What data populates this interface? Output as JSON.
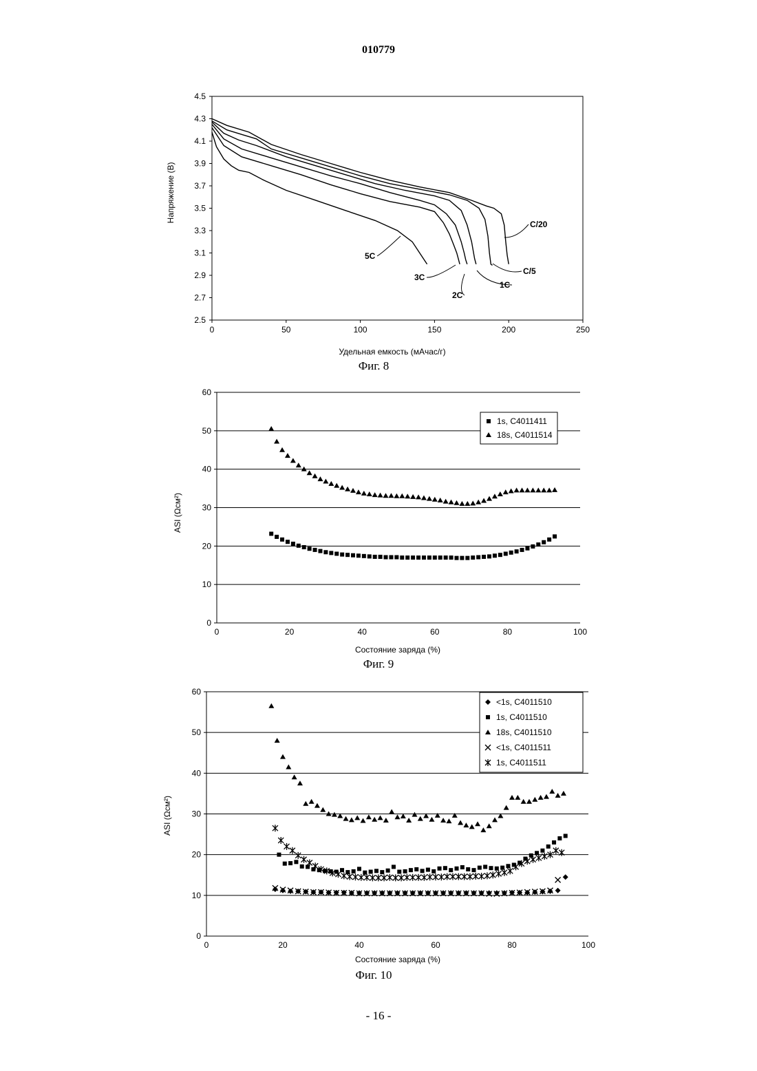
{
  "page": {
    "header_number": "010779",
    "footer_number": "- 16 -"
  },
  "figures": [
    {
      "caption": "Фиг. 8"
    },
    {
      "caption": "Фиг. 9"
    },
    {
      "caption": "Фиг. 10"
    }
  ],
  "chart_data": [
    {
      "type": "line",
      "title": "",
      "xlabel": "Удельная емкость (мАчас/г)",
      "ylabel": "Напряжение (В)",
      "xlim": [
        0,
        250
      ],
      "ylim": [
        2.5,
        4.5
      ],
      "xticks": [
        "0",
        "50",
        "100",
        "150",
        "200",
        "250"
      ],
      "yticks": [
        "2.5",
        "2.7",
        "2.9",
        "3.1",
        "3.3",
        "3.5",
        "3.7",
        "3.9",
        "4.1",
        "4.3",
        "4.5"
      ],
      "grid": false,
      "legend": "none",
      "series": [
        {
          "name": "C/20",
          "x": [
            0,
            10,
            25,
            40,
            60,
            80,
            100,
            120,
            140,
            160,
            175,
            185,
            190,
            195,
            197,
            198,
            199,
            200
          ],
          "y": [
            4.3,
            4.24,
            4.18,
            4.07,
            3.98,
            3.9,
            3.82,
            3.75,
            3.69,
            3.64,
            3.57,
            3.52,
            3.5,
            3.45,
            3.35,
            3.2,
            3.08,
            3.0
          ]
        },
        {
          "name": "C/5",
          "x": [
            0,
            10,
            20,
            30,
            40,
            60,
            80,
            100,
            120,
            140,
            160,
            172,
            180,
            184,
            186,
            187,
            188,
            189
          ],
          "y": [
            4.28,
            4.2,
            4.16,
            4.12,
            4.03,
            3.95,
            3.87,
            3.79,
            3.72,
            3.67,
            3.62,
            3.57,
            3.5,
            3.4,
            3.25,
            3.1,
            3.0,
            2.99
          ]
        },
        {
          "name": "1C",
          "x": [
            0,
            8,
            18,
            30,
            50,
            70,
            90,
            110,
            130,
            150,
            160,
            168,
            172,
            175,
            177,
            178
          ],
          "y": [
            4.27,
            4.17,
            4.11,
            4.06,
            3.96,
            3.88,
            3.8,
            3.72,
            3.66,
            3.61,
            3.57,
            3.48,
            3.35,
            3.2,
            3.05,
            3.0
          ]
        },
        {
          "name": "2C",
          "x": [
            0,
            8,
            20,
            40,
            60,
            80,
            100,
            120,
            140,
            150,
            158,
            164,
            168,
            170,
            171,
            172
          ],
          "y": [
            4.25,
            4.12,
            4.03,
            3.95,
            3.87,
            3.79,
            3.72,
            3.64,
            3.57,
            3.53,
            3.45,
            3.35,
            3.2,
            3.1,
            3.04,
            3.0
          ]
        },
        {
          "name": "3C",
          "x": [
            0,
            8,
            20,
            40,
            60,
            80,
            100,
            120,
            140,
            150,
            156,
            160,
            163,
            165,
            166,
            167
          ],
          "y": [
            4.22,
            4.06,
            3.96,
            3.88,
            3.8,
            3.71,
            3.63,
            3.56,
            3.51,
            3.47,
            3.37,
            3.27,
            3.17,
            3.1,
            3.05,
            3.0
          ]
        },
        {
          "name": "5C",
          "x": [
            0,
            3,
            8,
            13,
            18,
            25,
            35,
            50,
            70,
            90,
            110,
            125,
            135,
            140,
            145
          ],
          "y": [
            4.18,
            4.05,
            3.94,
            3.88,
            3.84,
            3.82,
            3.75,
            3.66,
            3.57,
            3.48,
            3.39,
            3.3,
            3.2,
            3.1,
            3.0
          ]
        }
      ],
      "curve_labels": [
        {
          "text": "C/20",
          "series": "C/20"
        },
        {
          "text": "C/5",
          "series": "C/5"
        },
        {
          "text": "1C",
          "series": "1C"
        },
        {
          "text": "2C",
          "series": "2C"
        },
        {
          "text": "3C",
          "series": "3C"
        },
        {
          "text": "5C",
          "series": "5C"
        }
      ]
    },
    {
      "type": "scatter",
      "title": "",
      "xlabel": "Состояние заряда (%)",
      "ylabel": "ASI (Ωсм²)",
      "xlim": [
        0,
        100
      ],
      "ylim": [
        0,
        60
      ],
      "xticks": [
        "0",
        "20",
        "40",
        "60",
        "80",
        "100"
      ],
      "yticks": [
        "0",
        "10",
        "20",
        "30",
        "40",
        "50",
        "60"
      ],
      "grid": true,
      "legend": "top-right",
      "series": [
        {
          "name": "1s, C4011411",
          "marker": "square",
          "x": [
            15,
            16.5,
            18,
            19.5,
            21,
            22.5,
            24,
            25.5,
            27,
            28.5,
            30,
            31.5,
            33,
            34.5,
            36,
            37.5,
            39,
            40.5,
            42,
            43.5,
            45,
            46.5,
            48,
            49.5,
            51,
            52.5,
            54,
            55.5,
            57,
            58.5,
            60,
            61.5,
            63,
            64.5,
            66,
            67.5,
            69,
            70.5,
            72,
            73.5,
            75,
            76.5,
            78,
            79.5,
            81,
            82.5,
            84,
            85.5,
            87,
            88.5,
            90,
            91.5,
            93
          ],
          "y": [
            23.2,
            22.4,
            21.7,
            21.1,
            20.6,
            20.1,
            19.7,
            19.3,
            19.0,
            18.7,
            18.4,
            18.2,
            18.0,
            17.8,
            17.7,
            17.6,
            17.5,
            17.4,
            17.3,
            17.2,
            17.2,
            17.1,
            17.1,
            17.1,
            17.0,
            17.0,
            17.0,
            17.0,
            17.0,
            17.0,
            17.0,
            17.0,
            17.0,
            17.0,
            16.9,
            16.9,
            16.9,
            17.0,
            17.1,
            17.2,
            17.3,
            17.5,
            17.7,
            18.0,
            18.3,
            18.6,
            19.0,
            19.4,
            19.9,
            20.4,
            21.0,
            21.7,
            22.5
          ]
        },
        {
          "name": "18s, C4011514",
          "marker": "triangle",
          "x": [
            15,
            16.5,
            18,
            19.5,
            21,
            22.5,
            24,
            25.5,
            27,
            28.5,
            30,
            31.5,
            33,
            34.5,
            36,
            37.5,
            39,
            40.5,
            42,
            43.5,
            45,
            46.5,
            48,
            49.5,
            51,
            52.5,
            54,
            55.5,
            57,
            58.5,
            60,
            61.5,
            63,
            64.5,
            66,
            67.5,
            69,
            70.5,
            72,
            73.5,
            75,
            76.5,
            78,
            79.5,
            81,
            82.5,
            84,
            85.5,
            87,
            88.5,
            90,
            91.5,
            93
          ],
          "y": [
            50.5,
            47.2,
            45.0,
            43.5,
            42.2,
            41.0,
            40.0,
            39.0,
            38.2,
            37.4,
            36.8,
            36.2,
            35.7,
            35.2,
            34.8,
            34.4,
            34.0,
            33.7,
            33.5,
            33.3,
            33.2,
            33.1,
            33.1,
            33.0,
            33.0,
            32.9,
            32.8,
            32.7,
            32.5,
            32.3,
            32.1,
            31.9,
            31.6,
            31.4,
            31.2,
            31.0,
            31.0,
            31.1,
            31.4,
            31.8,
            32.3,
            32.9,
            33.5,
            34.0,
            34.3,
            34.5,
            34.5,
            34.5,
            34.5,
            34.5,
            34.5,
            34.5,
            34.6
          ]
        }
      ]
    },
    {
      "type": "scatter",
      "title": "",
      "xlabel": "Состояние заряда (%)",
      "ylabel": "ASI (Ωсм²)",
      "xlim": [
        0,
        100
      ],
      "ylim": [
        0,
        60
      ],
      "xticks": [
        "0",
        "20",
        "40",
        "60",
        "80",
        "100"
      ],
      "yticks": [
        "0",
        "10",
        "20",
        "30",
        "40",
        "50",
        "60"
      ],
      "grid": true,
      "legend": "top-right",
      "series": [
        {
          "name": "<1s, C4011510",
          "marker": "diamond",
          "x": [
            18,
            20,
            22,
            24,
            26,
            28,
            30,
            32,
            34,
            36,
            38,
            40,
            42,
            44,
            46,
            48,
            50,
            52,
            54,
            56,
            58,
            60,
            62,
            64,
            66,
            68,
            70,
            72,
            74,
            76,
            78,
            80,
            82,
            84,
            86,
            88,
            90,
            92,
            94
          ],
          "y": [
            11.5,
            11.2,
            11.0,
            11.0,
            10.9,
            10.8,
            10.8,
            10.7,
            10.7,
            10.7,
            10.6,
            10.6,
            10.6,
            10.6,
            10.6,
            10.6,
            10.6,
            10.6,
            10.6,
            10.6,
            10.6,
            10.6,
            10.6,
            10.6,
            10.6,
            10.6,
            10.6,
            10.6,
            10.6,
            10.6,
            10.6,
            10.7,
            10.7,
            10.7,
            10.8,
            10.9,
            11.0,
            11.2,
            14.5
          ]
        },
        {
          "name": "1s, C4011510",
          "marker": "square",
          "x": [
            19,
            20.5,
            22,
            23.5,
            25,
            26.5,
            28,
            29.5,
            31,
            32.5,
            34,
            35.5,
            37,
            38.5,
            40,
            41.5,
            43,
            44.5,
            46,
            47.5,
            49,
            50.5,
            52,
            53.5,
            55,
            56.5,
            58,
            59.5,
            61,
            62.5,
            64,
            65.5,
            67,
            68.5,
            70,
            71.5,
            73,
            74.5,
            76,
            77.5,
            79,
            80.5,
            82,
            83.5,
            85,
            86.5,
            88,
            89.5,
            91,
            92.5,
            94
          ],
          "y": [
            20.0,
            17.8,
            17.9,
            18.2,
            17.1,
            17.0,
            16.4,
            16.2,
            16.0,
            15.9,
            15.8,
            16.2,
            15.7,
            15.9,
            16.5,
            15.6,
            15.8,
            16.0,
            15.7,
            16.1,
            17.0,
            15.8,
            15.9,
            16.2,
            16.4,
            16.0,
            16.3,
            15.9,
            16.6,
            16.7,
            16.2,
            16.6,
            16.9,
            16.4,
            16.2,
            16.8,
            17.0,
            16.7,
            16.6,
            16.8,
            17.2,
            17.5,
            18.0,
            19.0,
            19.8,
            20.4,
            21.0,
            22.0,
            23.0,
            24.0,
            24.6
          ]
        },
        {
          "name": "18s, C4011510",
          "marker": "triangle",
          "x": [
            17,
            18.5,
            20,
            21.5,
            23,
            24.5,
            26,
            27.5,
            29,
            30.5,
            32,
            33.5,
            35,
            36.5,
            38,
            39.5,
            41,
            42.5,
            44,
            45.5,
            47,
            48.5,
            50,
            51.5,
            53,
            54.5,
            56,
            57.5,
            59,
            60.5,
            62,
            63.5,
            65,
            66.5,
            68,
            69.5,
            71,
            72.5,
            74,
            75.5,
            77,
            78.5,
            80,
            81.5,
            83,
            84.5,
            86,
            87.5,
            89,
            90.5,
            92,
            93.5
          ],
          "y": [
            56.5,
            48.0,
            44.0,
            41.5,
            39.0,
            37.5,
            32.5,
            33.0,
            32.0,
            31.0,
            30.0,
            29.8,
            29.5,
            28.8,
            28.5,
            29.0,
            28.3,
            29.2,
            28.6,
            29.0,
            28.4,
            30.5,
            29.2,
            29.4,
            28.4,
            29.8,
            28.8,
            29.5,
            28.6,
            29.6,
            28.4,
            28.2,
            29.6,
            27.8,
            27.2,
            26.8,
            27.5,
            26.0,
            27.0,
            28.5,
            29.5,
            31.5,
            34.0,
            34.0,
            33.0,
            33.0,
            33.5,
            34.0,
            34.2,
            35.5,
            34.5,
            35.0
          ]
        },
        {
          "name": "<1s, C4011511",
          "marker": "x",
          "x": [
            18,
            20,
            22,
            24,
            26,
            28,
            30,
            32,
            34,
            36,
            38,
            40,
            42,
            44,
            46,
            48,
            50,
            52,
            54,
            56,
            58,
            60,
            62,
            64,
            66,
            68,
            70,
            72,
            74,
            76,
            78,
            80,
            82,
            84,
            86,
            88,
            90,
            92
          ],
          "y": [
            11.8,
            11.4,
            11.2,
            11.0,
            10.9,
            10.8,
            10.8,
            10.7,
            10.6,
            10.6,
            10.6,
            10.5,
            10.5,
            10.5,
            10.5,
            10.5,
            10.5,
            10.5,
            10.5,
            10.5,
            10.5,
            10.5,
            10.5,
            10.5,
            10.5,
            10.5,
            10.5,
            10.5,
            10.4,
            10.4,
            10.5,
            10.6,
            10.7,
            10.8,
            10.9,
            11.0,
            11.2,
            13.8
          ]
        },
        {
          "name": "1s, C4011511",
          "marker": "asterisk",
          "x": [
            18,
            19.5,
            21,
            22.5,
            24,
            25.5,
            27,
            28.5,
            30,
            31.5,
            33,
            34.5,
            36,
            37.5,
            39,
            40.5,
            42,
            43.5,
            45,
            46.5,
            48,
            49.5,
            51,
            52.5,
            54,
            55.5,
            57,
            58.5,
            60,
            61.5,
            63,
            64.5,
            66,
            67.5,
            69,
            70.5,
            72,
            73.5,
            75,
            76.5,
            78,
            79.5,
            81,
            82.5,
            84,
            85.5,
            87,
            88.5,
            90,
            91.5,
            93
          ],
          "y": [
            26.5,
            23.5,
            22.0,
            21.0,
            19.8,
            18.8,
            18.0,
            17.2,
            16.4,
            16.0,
            15.5,
            15.2,
            14.8,
            14.6,
            14.5,
            14.4,
            14.4,
            14.3,
            14.3,
            14.3,
            14.4,
            14.3,
            14.3,
            14.4,
            14.4,
            14.4,
            14.4,
            14.5,
            14.5,
            14.5,
            14.6,
            14.6,
            14.6,
            14.6,
            14.6,
            14.7,
            14.7,
            14.8,
            15.0,
            15.3,
            15.6,
            16.0,
            17.0,
            17.8,
            18.4,
            18.8,
            19.2,
            19.6,
            20.0,
            21.0,
            20.5
          ]
        }
      ]
    }
  ]
}
